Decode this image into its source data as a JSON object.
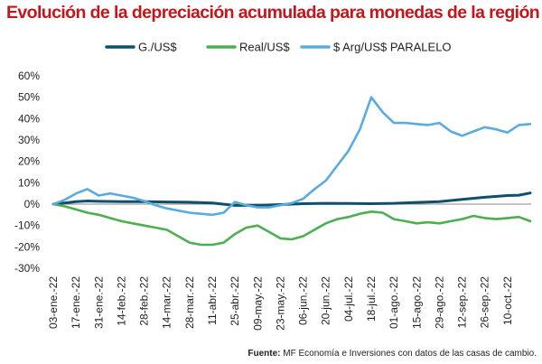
{
  "chart_data": {
    "type": "line",
    "title": "Evolución de la depreciación acumulada para monedas de la región",
    "xlabel": "",
    "ylabel": "",
    "y_ticks": [
      "60%",
      "50%",
      "40%",
      "30%",
      "20%",
      "10%",
      "0%",
      "-10%",
      "-20%",
      "-30%"
    ],
    "ylim": [
      -30,
      60
    ],
    "grid": false,
    "legend_position": "top",
    "x_start": "2022-01-03",
    "x_end": "2022-10-24",
    "x_tick_dates": [
      "2022-01-03",
      "2022-01-17",
      "2022-01-31",
      "2022-02-14",
      "2022-02-28",
      "2022-03-14",
      "2022-03-28",
      "2022-04-11",
      "2022-04-25",
      "2022-05-09",
      "2022-05-23",
      "2022-06-06",
      "2022-06-20",
      "2022-07-04",
      "2022-07-18",
      "2022-08-01",
      "2022-08-15",
      "2022-08-29",
      "2022-09-12",
      "2022-09-26",
      "2022-10-10"
    ],
    "x_tick_labels": [
      "03-ene.-22",
      "17-ene.-22",
      "31-ene.-22",
      "14-feb.-22",
      "28-feb.-22",
      "14-mar.-22",
      "28-mar.-22",
      "11-abr.-22",
      "25-abr.-22",
      "09-may.-22",
      "23-may.-22",
      "06-jun.-22",
      "20-jun.-22",
      "04-jul.-22",
      "18-jul.-22",
      "01-ago.-22",
      "15-ago.-22",
      "29-ago.-22",
      "12-sep.-22",
      "26-sep.-22",
      "10-oct.-22"
    ],
    "series": [
      {
        "name": "G./US$",
        "color": "#0d4f6c",
        "points": [
          [
            "2022-01-03",
            0
          ],
          [
            "2022-01-10",
            0.5
          ],
          [
            "2022-01-17",
            1.2
          ],
          [
            "2022-01-24",
            1.5
          ],
          [
            "2022-01-31",
            1.3
          ],
          [
            "2022-02-14",
            1.2
          ],
          [
            "2022-02-28",
            1.2
          ],
          [
            "2022-03-14",
            1.0
          ],
          [
            "2022-03-28",
            0.9
          ],
          [
            "2022-04-11",
            0.5
          ],
          [
            "2022-04-25",
            -0.6
          ],
          [
            "2022-05-09",
            -0.6
          ],
          [
            "2022-05-23",
            -0.2
          ],
          [
            "2022-06-06",
            0.2
          ],
          [
            "2022-06-20",
            0.4
          ],
          [
            "2022-07-04",
            0.3
          ],
          [
            "2022-07-18",
            0.2
          ],
          [
            "2022-08-01",
            0.4
          ],
          [
            "2022-08-15",
            0.8
          ],
          [
            "2022-08-29",
            1.2
          ],
          [
            "2022-09-12",
            2.2
          ],
          [
            "2022-09-26",
            3.2
          ],
          [
            "2022-10-10",
            4.0
          ],
          [
            "2022-10-17",
            4.2
          ],
          [
            "2022-10-24",
            5.2
          ]
        ]
      },
      {
        "name": "Real/US$",
        "color": "#4caf50",
        "points": [
          [
            "2022-01-03",
            0
          ],
          [
            "2022-01-10",
            -1
          ],
          [
            "2022-01-17",
            -2.5
          ],
          [
            "2022-01-24",
            -4
          ],
          [
            "2022-01-31",
            -5
          ],
          [
            "2022-02-07",
            -6.5
          ],
          [
            "2022-02-14",
            -8
          ],
          [
            "2022-02-21",
            -9
          ],
          [
            "2022-02-28",
            -10
          ],
          [
            "2022-03-07",
            -11
          ],
          [
            "2022-03-14",
            -12
          ],
          [
            "2022-03-21",
            -15
          ],
          [
            "2022-03-28",
            -18
          ],
          [
            "2022-04-04",
            -19
          ],
          [
            "2022-04-11",
            -19
          ],
          [
            "2022-04-18",
            -18
          ],
          [
            "2022-04-25",
            -14
          ],
          [
            "2022-05-02",
            -11
          ],
          [
            "2022-05-09",
            -10
          ],
          [
            "2022-05-16",
            -13
          ],
          [
            "2022-05-23",
            -16
          ],
          [
            "2022-05-30",
            -16.5
          ],
          [
            "2022-06-06",
            -15
          ],
          [
            "2022-06-13",
            -12
          ],
          [
            "2022-06-20",
            -9
          ],
          [
            "2022-06-27",
            -7
          ],
          [
            "2022-07-04",
            -6
          ],
          [
            "2022-07-11",
            -4.5
          ],
          [
            "2022-07-18",
            -3.5
          ],
          [
            "2022-07-25",
            -4
          ],
          [
            "2022-08-01",
            -7
          ],
          [
            "2022-08-08",
            -8
          ],
          [
            "2022-08-15",
            -9
          ],
          [
            "2022-08-22",
            -8.5
          ],
          [
            "2022-08-29",
            -9
          ],
          [
            "2022-09-05",
            -8
          ],
          [
            "2022-09-12",
            -7
          ],
          [
            "2022-09-19",
            -5.5
          ],
          [
            "2022-09-26",
            -6.5
          ],
          [
            "2022-10-03",
            -7
          ],
          [
            "2022-10-10",
            -6.5
          ],
          [
            "2022-10-17",
            -6
          ],
          [
            "2022-10-24",
            -8
          ]
        ]
      },
      {
        "name": "$ Arg/US$ PARALELO",
        "color": "#5aabdf",
        "points": [
          [
            "2022-01-03",
            0
          ],
          [
            "2022-01-10",
            2
          ],
          [
            "2022-01-17",
            5
          ],
          [
            "2022-01-24",
            7
          ],
          [
            "2022-01-31",
            4
          ],
          [
            "2022-02-07",
            5
          ],
          [
            "2022-02-14",
            4
          ],
          [
            "2022-02-21",
            3
          ],
          [
            "2022-02-28",
            1.5
          ],
          [
            "2022-03-07",
            -0.5
          ],
          [
            "2022-03-14",
            -2
          ],
          [
            "2022-03-21",
            -3
          ],
          [
            "2022-03-28",
            -4
          ],
          [
            "2022-04-04",
            -4.5
          ],
          [
            "2022-04-11",
            -5
          ],
          [
            "2022-04-18",
            -4
          ],
          [
            "2022-04-25",
            1
          ],
          [
            "2022-05-02",
            -0.5
          ],
          [
            "2022-05-09",
            -1.5
          ],
          [
            "2022-05-16",
            -1.5
          ],
          [
            "2022-05-23",
            -0.5
          ],
          [
            "2022-05-30",
            0.5
          ],
          [
            "2022-06-06",
            2.5
          ],
          [
            "2022-06-13",
            7
          ],
          [
            "2022-06-20",
            11
          ],
          [
            "2022-06-27",
            18
          ],
          [
            "2022-07-04",
            25
          ],
          [
            "2022-07-11",
            35
          ],
          [
            "2022-07-18",
            50
          ],
          [
            "2022-07-25",
            43
          ],
          [
            "2022-08-01",
            38
          ],
          [
            "2022-08-08",
            38
          ],
          [
            "2022-08-15",
            37.5
          ],
          [
            "2022-08-22",
            37
          ],
          [
            "2022-08-29",
            38
          ],
          [
            "2022-09-05",
            34
          ],
          [
            "2022-09-12",
            32
          ],
          [
            "2022-09-19",
            34
          ],
          [
            "2022-09-26",
            36
          ],
          [
            "2022-10-03",
            35
          ],
          [
            "2022-10-10",
            33.5
          ],
          [
            "2022-10-17",
            37
          ],
          [
            "2022-10-24",
            37.5
          ]
        ]
      }
    ]
  },
  "source": {
    "label": "Fuente:",
    "text": "MF Economía e Inversiones con datos de las casas de cambio."
  }
}
